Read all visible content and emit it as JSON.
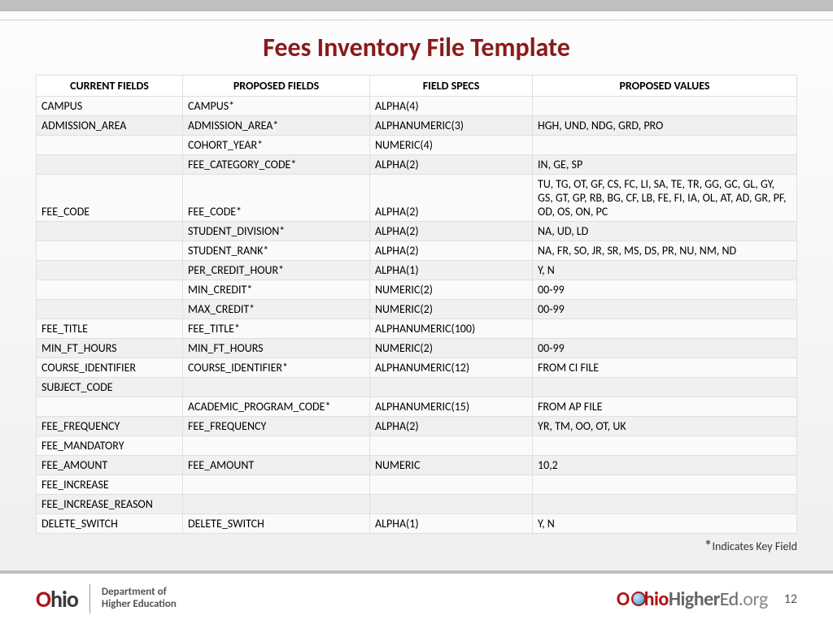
{
  "title": "Fees Inventory File Template",
  "columns": [
    "CURRENT FIELDS",
    "PROPOSED FIELDS",
    "FIELD SPECS",
    "PROPOSED VALUES"
  ],
  "rows": [
    [
      "CAMPUS",
      "CAMPUS*",
      "ALPHA(4)",
      ""
    ],
    [
      "ADMISSION_AREA",
      "ADMISSION_AREA*",
      "ALPHANUMERIC(3)",
      "HGH, UND, NDG, GRD, PRO"
    ],
    [
      "",
      "COHORT_YEAR*",
      "NUMERIC(4)",
      ""
    ],
    [
      "",
      "FEE_CATEGORY_CODE*",
      "ALPHA(2)",
      "IN, GE, SP"
    ],
    [
      "FEE_CODE",
      "FEE_CODE*",
      "ALPHA(2)",
      "TU, TG, OT, GF, CS, FC, LI, SA, TE, TR, GG, GC, GL, GY, GS, GT, GP, RB, BG, CF, LB, FE, FI, IA, OL, AT, AD, GR, PF, OD, OS, ON, PC"
    ],
    [
      "",
      "STUDENT_DIVISION*",
      "ALPHA(2)",
      "NA, UD, LD"
    ],
    [
      "",
      "STUDENT_RANK*",
      "ALPHA(2)",
      "NA, FR, SO, JR, SR, MS, DS, PR, NU, NM, ND"
    ],
    [
      "",
      "PER_CREDIT_HOUR*",
      "ALPHA(1)",
      "Y, N"
    ],
    [
      "",
      "MIN_CREDIT*",
      "NUMERIC(2)",
      "00-99"
    ],
    [
      "",
      "MAX_CREDIT*",
      "NUMERIC(2)",
      "00-99"
    ],
    [
      "FEE_TITLE",
      "FEE_TITLE*",
      "ALPHANUMERIC(100)",
      ""
    ],
    [
      "MIN_FT_HOURS",
      "MIN_FT_HOURS",
      "NUMERIC(2)",
      "00-99"
    ],
    [
      "COURSE_IDENTIFIER",
      "COURSE_IDENTIFIER*",
      "ALPHANUMERIC(12)",
      "FROM CI FILE"
    ],
    [
      "SUBJECT_CODE",
      "",
      "",
      ""
    ],
    [
      "",
      "ACADEMIC_PROGRAM_CODE*",
      "ALPHANUMERIC(15)",
      "FROM AP FILE"
    ],
    [
      "FEE_FREQUENCY",
      "FEE_FREQUENCY",
      "ALPHA(2)",
      "YR, TM, OO, OT, UK"
    ],
    [
      "FEE_MANDATORY",
      "",
      "",
      ""
    ],
    [
      "FEE_AMOUNT",
      "FEE_AMOUNT",
      "NUMERIC",
      "10,2"
    ],
    [
      "FEE_INCREASE",
      "",
      "",
      ""
    ],
    [
      "FEE_INCREASE_REASON",
      "",
      "",
      ""
    ],
    [
      "DELETE_SWITCH",
      "DELETE_SWITCH",
      "ALPHA(1)",
      "Y, N"
    ]
  ],
  "footnote_star": "*",
  "footnote_text": "Indicates Key Field",
  "footer": {
    "ohio": "Ohio",
    "dept_line1": "Department of",
    "dept_line2": "Higher Education",
    "highered_prefix": "O",
    "highered_hio": "hio",
    "highered_higher": "Higher",
    "highered_ed": "Ed",
    "highered_org": ".org",
    "page": "12"
  },
  "colors": {
    "title": "#8b1a1a",
    "ohio_red": "#b01116",
    "top_bar": "#bfbfbf"
  }
}
